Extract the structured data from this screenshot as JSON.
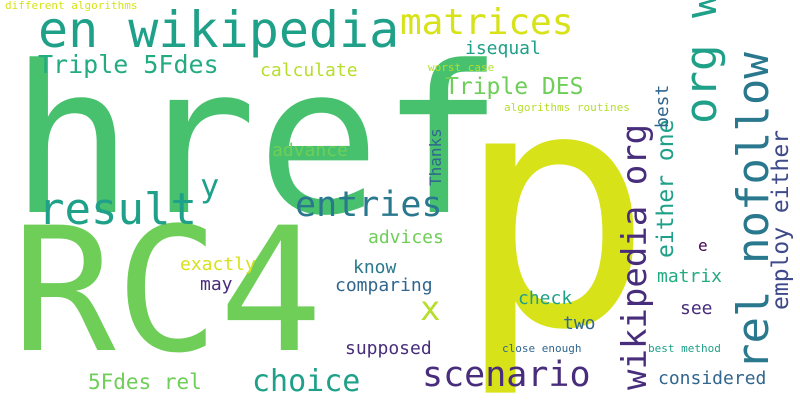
{
  "words": {
    "href": "href",
    "p": "p",
    "rc4": "RC4",
    "en_wikipedia": "en wikipedia",
    "result": "result",
    "matrices": "matrices",
    "triple_5fdes": "Triple 5Fdes",
    "calculate": "calculate",
    "isequal": "isequal",
    "worst_case": "worst case",
    "triple_des": "Triple DES",
    "algorithms_routines": "algorithms routines",
    "different_algorithms": "different algorithms",
    "org_wiki": "org wiki",
    "rel_nofollow": "rel nofollow",
    "wikipedia_org": "wikipedia org",
    "either_one": "either one",
    "employ_either": "employ either",
    "best_choice": "best",
    "advance": "advance",
    "thanks": "Thanks",
    "y": "y",
    "entries": "entries",
    "advices": "advices",
    "exactly": "exactly",
    "know": "know",
    "x": "x",
    "may": "may",
    "comparing": "comparing",
    "matrix": "matrix",
    "check": "check",
    "see": "see",
    "two": "two",
    "e": "e",
    "supposed": "supposed",
    "close_enough": "close enough",
    "best_method": "best method",
    "fdes_rel": "5Fdes rel",
    "choice": "choice",
    "scenario": "scenario",
    "considered": "considered"
  },
  "colors": {
    "yellow": "#d7e219",
    "green": "#47c16e",
    "teal": "#1fa088",
    "blue": "#31668e",
    "purple": "#472d7b"
  }
}
